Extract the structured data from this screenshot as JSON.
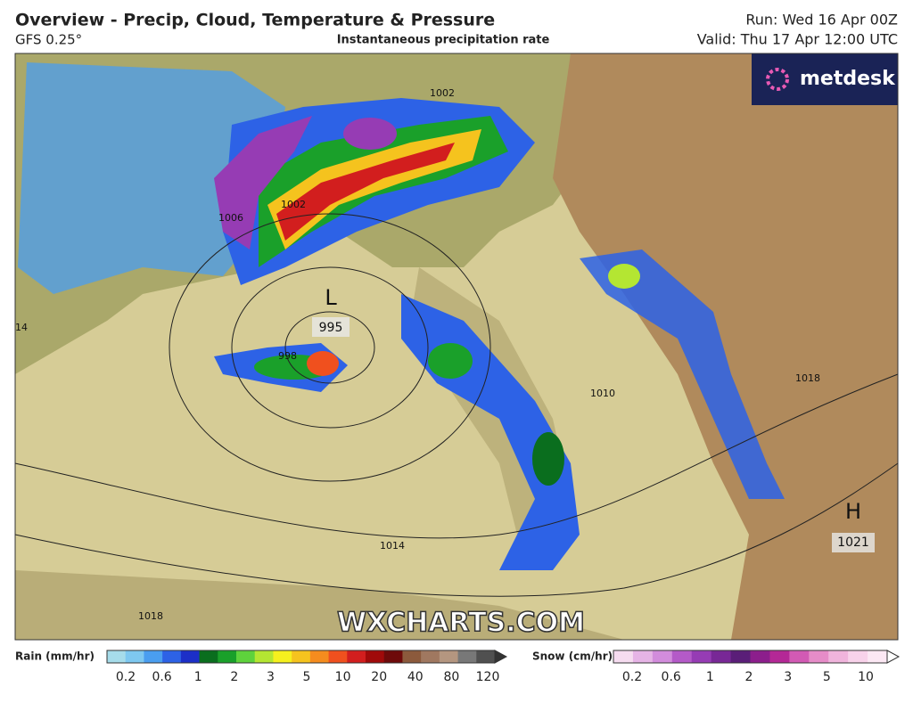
{
  "header": {
    "title": "Overview - Precip, Cloud, Temperature & Pressure",
    "model": "GFS 0.25°",
    "product": "Instantaneous precipitation rate",
    "run": "Run: Wed 16 Apr 00Z",
    "valid": "Valid: Thu 17 Apr 12:00 UTC"
  },
  "brand": "metdesk",
  "watermark": "WXCHARTS.COM",
  "map": {
    "lows": [
      {
        "letter": "L",
        "pressure": "995"
      }
    ],
    "highs": [
      {
        "letter": "H",
        "pressure": "1021"
      }
    ],
    "isobar_labels": [
      "1002",
      "1002",
      "1006",
      "998",
      "1010",
      "1014",
      "1018",
      "1018",
      "14"
    ]
  },
  "legend": {
    "rain": {
      "label": "Rain (mm/hr)",
      "ticks": [
        0.2,
        0.6,
        1,
        2,
        3,
        5,
        10,
        20,
        40,
        80,
        120
      ],
      "colors": [
        "#a6dcea",
        "#7ec8f0",
        "#4a9ef0",
        "#2d62e6",
        "#1c2fc8",
        "#0a6e1e",
        "#1aa02a",
        "#5ed23c",
        "#b4e632",
        "#f5f01e",
        "#f5c31e",
        "#f58c1e",
        "#f0501e",
        "#d21e1e",
        "#a00a0a",
        "#6e0a0a",
        "#8c5a3c",
        "#a07860",
        "#b49680",
        "#787878",
        "#505050"
      ]
    },
    "snow": {
      "label": "Snow (cm/hr)",
      "ticks": [
        0.2,
        0.6,
        1,
        2,
        3,
        5,
        10
      ],
      "colors": [
        "#f6dcf0",
        "#e6b4e6",
        "#d28cdc",
        "#b45ac8",
        "#963cb4",
        "#782896",
        "#5a1e78",
        "#8c1e8c",
        "#b42896",
        "#d25ab4",
        "#e68cc8",
        "#f0b4dc",
        "#f8d2ea",
        "#fce8f4"
      ]
    }
  }
}
